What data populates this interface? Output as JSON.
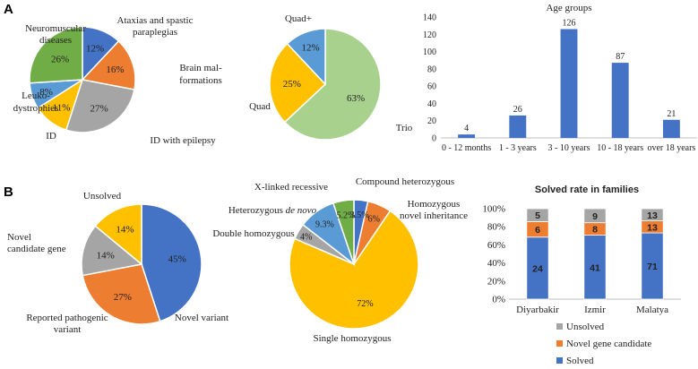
{
  "panels": {
    "a": "A",
    "b": "B"
  },
  "chart_data": [
    {
      "type": "pie",
      "id": "pieA1",
      "title": "",
      "slices": [
        {
          "label": "Ataxias and spastic paraplegias",
          "value": 12,
          "display": "12%",
          "color": "#4472C4"
        },
        {
          "label": "Brain mal-formations",
          "value": 16,
          "display": "16%",
          "color": "#ED7D31"
        },
        {
          "label": "ID with epilepsy",
          "value": 27,
          "display": "27%",
          "color": "#A5A5A5"
        },
        {
          "label": "ID",
          "value": 11,
          "display": "11%",
          "color": "#FFC000"
        },
        {
          "label": "Leuko-dystrophies",
          "value": 8,
          "display": "8%",
          "color": "#5B9BD5"
        },
        {
          "label": "Neuromuscular diseases",
          "value": 26,
          "display": "26%",
          "color": "#70AD47"
        }
      ]
    },
    {
      "type": "pie",
      "id": "pieA2",
      "title": "",
      "slices": [
        {
          "label": "Trio",
          "value": 63,
          "display": "63%",
          "color": "#A9D18E"
        },
        {
          "label": "Quad",
          "value": 25,
          "display": "25%",
          "color": "#FFC000"
        },
        {
          "label": "Quad+",
          "value": 12,
          "display": "12%",
          "color": "#5B9BD5"
        }
      ]
    },
    {
      "type": "bar",
      "id": "barAge",
      "title": "Age groups",
      "categories": [
        "0 - 12 months",
        "1 - 3 years",
        "3 - 10 years",
        "10 - 18 years",
        "over 18 years"
      ],
      "values": [
        4,
        26,
        126,
        87,
        21
      ],
      "xlabel": "",
      "ylabel": "",
      "ylim": [
        0,
        140
      ],
      "yticks": [
        0,
        20,
        40,
        60,
        80,
        100,
        120,
        140
      ],
      "color": "#4472C4",
      "grid": false
    },
    {
      "type": "pie",
      "id": "pieB1",
      "title": "",
      "slices": [
        {
          "label": "Novel variant",
          "value": 45,
          "display": "45%",
          "color": "#4472C4"
        },
        {
          "label": "Reported pathogenic variant",
          "value": 27,
          "display": "27%",
          "color": "#ED7D31"
        },
        {
          "label": "Novel candidate gene",
          "value": 14,
          "display": "14%",
          "color": "#A5A5A5"
        },
        {
          "label": "Unsolved",
          "value": 14,
          "display": "14%",
          "color": "#FFC000"
        }
      ]
    },
    {
      "type": "pie",
      "id": "pieB2",
      "title": "",
      "slices": [
        {
          "label": "Compound heterozygous",
          "value": 3.5,
          "display": "3.5%",
          "color": "#4472C4"
        },
        {
          "label": "Homozygous novel inheritance",
          "value": 6,
          "display": "6%",
          "color": "#ED7D31"
        },
        {
          "label": "Single homozygous",
          "value": 72,
          "display": "72%",
          "color": "#FFC000"
        },
        {
          "label": "Double homozygous",
          "value": 4,
          "display": "4%",
          "color": "#A5A5A5"
        },
        {
          "label": "X-linked recessive",
          "value": 9.3,
          "display": "9.3%",
          "color": "#5B9BD5"
        },
        {
          "label": "Heterozygous de novo",
          "value": 5.2,
          "display": "5.2%",
          "color": "#70AD47"
        }
      ],
      "annotation_labels": {
        "x_linked": "X-linked recessive",
        "het_prefix": "Heterozygous ",
        "het_italic": "de novo",
        "double": "Double homozygous",
        "compound": "Compound heterozygous",
        "homo_novel_1": "Homozygous",
        "homo_novel_2": "novel inheritance",
        "single": "Single homozygous"
      }
    },
    {
      "type": "bar",
      "subtype": "stacked",
      "id": "barSolved",
      "title": "Solved rate in families",
      "categories": [
        "Diyarbakir",
        "Izmir",
        "Malatya"
      ],
      "series": [
        {
          "name": "Solved",
          "values": [
            24,
            41,
            71
          ],
          "color": "#4472C4"
        },
        {
          "name": "Novel gene candidate",
          "values": [
            6,
            8,
            13
          ],
          "color": "#ED7D31"
        },
        {
          "name": "Unsolved",
          "values": [
            5,
            9,
            13
          ],
          "color": "#A5A5A5"
        }
      ],
      "ylim": [
        0,
        100
      ],
      "yticks": [
        "0%",
        "20%",
        "40%",
        "60%",
        "80%",
        "100%"
      ],
      "legend_order": [
        "Unsolved",
        "Novel gene candidate",
        "Solved"
      ],
      "legend_position": "bottom"
    }
  ]
}
